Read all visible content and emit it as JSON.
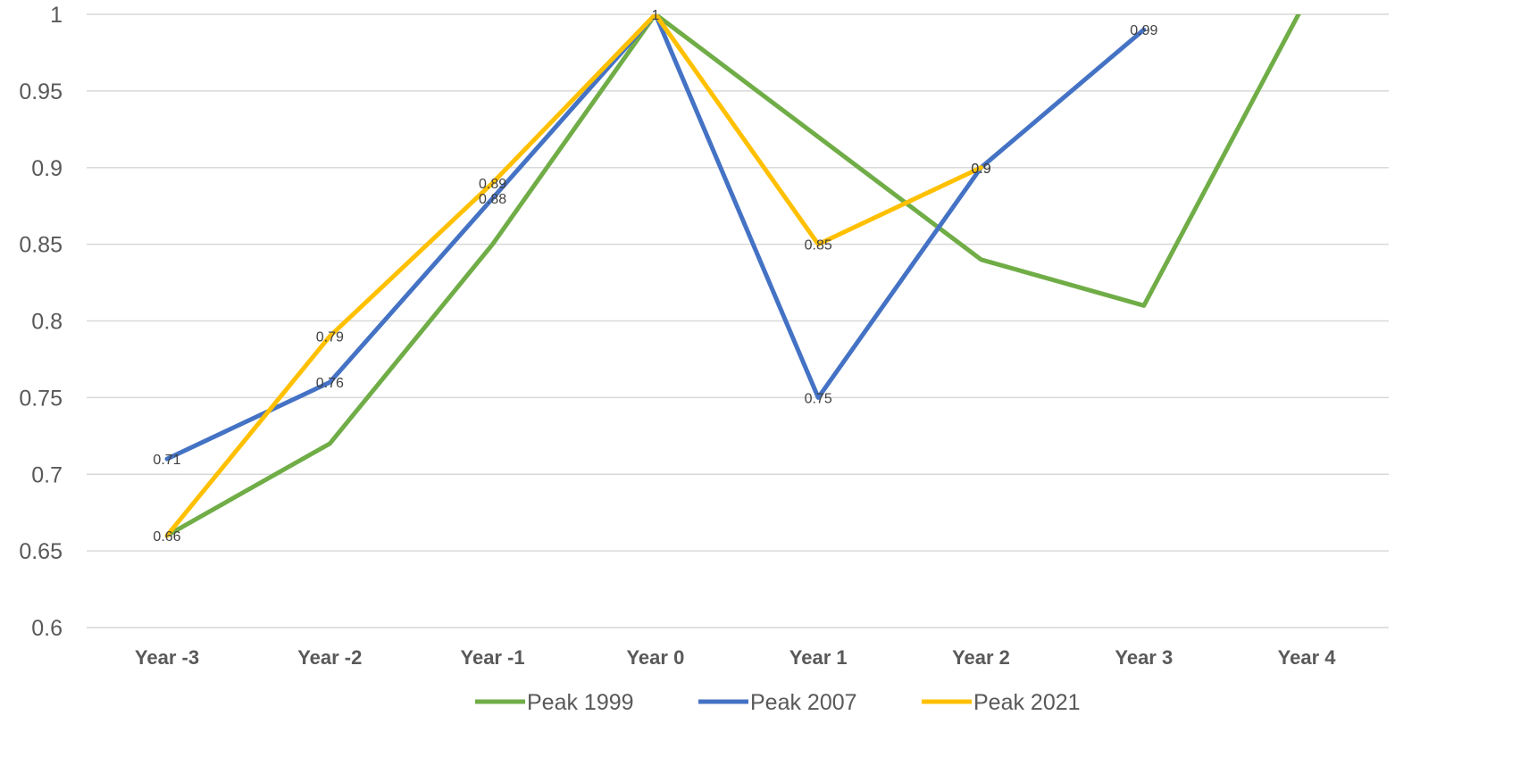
{
  "chart_data": {
    "type": "line",
    "categories": [
      "Year -3",
      "Year -2",
      "Year -1",
      "Year 0",
      "Year 1",
      "Year 2",
      "Year 3",
      "Year 4"
    ],
    "ylim": [
      0.6,
      1
    ],
    "yticks": [
      "0.6",
      "0.65",
      "0.7",
      "0.75",
      "0.8",
      "0.85",
      "0.9",
      "0.95",
      "1"
    ],
    "grid": true,
    "legend": "bottom",
    "series": [
      {
        "name": "Peak 1999",
        "color": "#70ad47",
        "values": [
          0.66,
          0.72,
          0.85,
          1.0,
          0.92,
          0.84,
          0.81,
          1.01
        ],
        "labels": [
          null,
          null,
          null,
          null,
          null,
          null,
          null,
          null
        ]
      },
      {
        "name": "Peak 2007",
        "color": "#4472c4",
        "values": [
          0.71,
          0.76,
          0.88,
          1.0,
          0.75,
          0.9,
          0.99,
          null
        ],
        "labels": [
          "0.71",
          "0.76",
          "0.88",
          null,
          "0.75",
          "0.9",
          "0.99",
          null
        ]
      },
      {
        "name": "Peak 2021",
        "color": "#ffc000",
        "values": [
          0.66,
          0.79,
          0.89,
          1.0,
          0.85,
          0.9,
          null,
          null
        ],
        "labels": [
          "0.66",
          "0.79",
          "0.89",
          "1",
          "0.85",
          "0.9",
          null,
          null
        ]
      }
    ]
  }
}
